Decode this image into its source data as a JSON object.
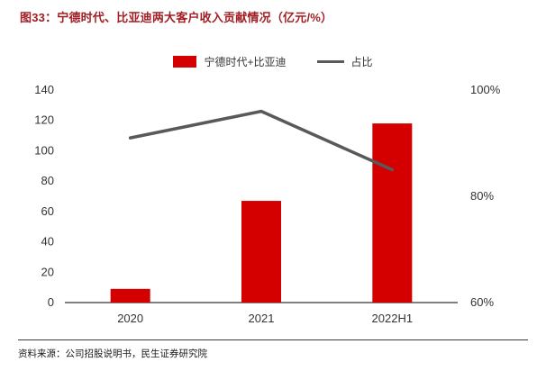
{
  "header": {
    "title": "图33：宁德时代、比亚迪两大客户收入贡献情况（亿元/%）"
  },
  "legend": [
    {
      "label": "宁德时代+比亚迪",
      "type": "bar"
    },
    {
      "label": "占比",
      "type": "line"
    }
  ],
  "colors": {
    "title": "#a01e23",
    "bar": "#d40000",
    "line": "#595959",
    "axis": "#000000"
  },
  "footer": {
    "source": "资料来源：公司招股说明书，民生证券研究院"
  },
  "chart_data": {
    "type": "bar",
    "title": "图33：宁德时代、比亚迪两大客户收入贡献情况（亿元/%）",
    "categories": [
      "2020",
      "2021",
      "2022H1"
    ],
    "series": [
      {
        "name": "宁德时代+比亚迪",
        "type": "bar",
        "axis": "left",
        "values": [
          9,
          67,
          118
        ]
      },
      {
        "name": "占比",
        "type": "line",
        "axis": "right",
        "values": [
          91,
          96,
          85
        ]
      }
    ],
    "left_axis": {
      "min": 0,
      "max": 140,
      "step": 20,
      "ticks": [
        0,
        20,
        40,
        60,
        80,
        100,
        120,
        140
      ]
    },
    "right_axis": {
      "min": 60,
      "max": 100,
      "tick_values": [
        60,
        80,
        100
      ],
      "ticks": [
        "60%",
        "80%",
        "100%"
      ]
    },
    "grid": false,
    "legend_position": "top-center",
    "xlabel": "",
    "ylabel_left": "亿元",
    "ylabel_right": "%"
  }
}
